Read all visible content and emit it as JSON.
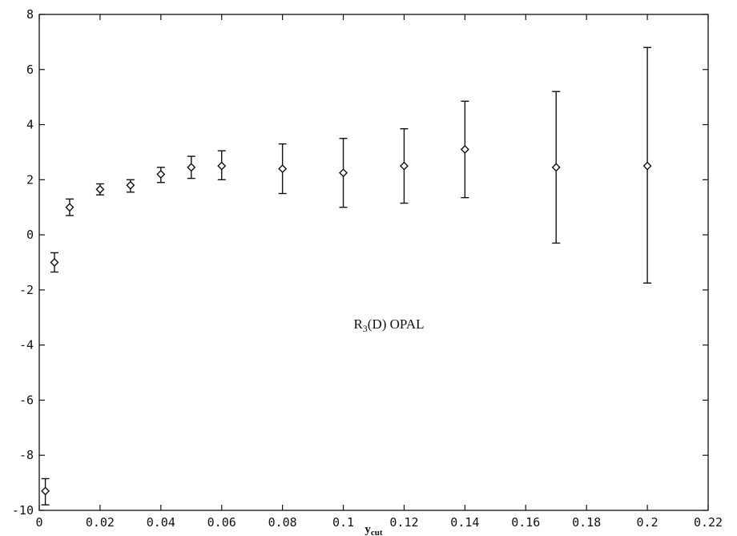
{
  "chart_data": {
    "type": "scatter",
    "title": "",
    "xlabel": "y",
    "xlabel_sub": "cut",
    "ylabel": "",
    "xlim": [
      0,
      0.22
    ],
    "ylim": [
      -10,
      8
    ],
    "grid": false,
    "x_ticks": [
      0,
      0.02,
      0.04,
      0.06,
      0.08,
      0.1,
      0.12,
      0.14,
      0.16,
      0.18,
      0.2,
      0.22
    ],
    "x_tick_labels": [
      "0",
      "0.02",
      "0.04",
      "0.06",
      "0.08",
      "0.1",
      "0.12",
      "0.14",
      "0.16",
      "0.18",
      "0.2",
      "0.22"
    ],
    "y_ticks": [
      -10,
      -8,
      -6,
      -4,
      -2,
      0,
      2,
      4,
      6,
      8
    ],
    "y_tick_labels": [
      "-10",
      "-8",
      "-6",
      "-4",
      "-2",
      "0",
      "2",
      "4",
      "6",
      "8"
    ],
    "annotation": {
      "prefix": "R",
      "sub": "3",
      "suffix": "(D) OPAL",
      "x": 0.115,
      "y": -3.4
    },
    "marker": "diamond",
    "points": [
      {
        "x": 0.002,
        "y": -9.3,
        "lo": -9.8,
        "hi": -8.85
      },
      {
        "x": 0.005,
        "y": -1.0,
        "lo": -1.35,
        "hi": -0.65
      },
      {
        "x": 0.01,
        "y": 1.0,
        "lo": 0.7,
        "hi": 1.3
      },
      {
        "x": 0.02,
        "y": 1.65,
        "lo": 1.45,
        "hi": 1.85
      },
      {
        "x": 0.03,
        "y": 1.8,
        "lo": 1.55,
        "hi": 2.0
      },
      {
        "x": 0.04,
        "y": 2.2,
        "lo": 1.9,
        "hi": 2.45
      },
      {
        "x": 0.05,
        "y": 2.45,
        "lo": 2.05,
        "hi": 2.85
      },
      {
        "x": 0.06,
        "y": 2.5,
        "lo": 2.0,
        "hi": 3.05
      },
      {
        "x": 0.08,
        "y": 2.4,
        "lo": 1.5,
        "hi": 3.3
      },
      {
        "x": 0.1,
        "y": 2.25,
        "lo": 1.0,
        "hi": 3.5
      },
      {
        "x": 0.12,
        "y": 2.5,
        "lo": 1.15,
        "hi": 3.85
      },
      {
        "x": 0.14,
        "y": 3.1,
        "lo": 1.35,
        "hi": 4.85
      },
      {
        "x": 0.17,
        "y": 2.45,
        "lo": -0.3,
        "hi": 5.2
      },
      {
        "x": 0.2,
        "y": 2.5,
        "lo": -1.75,
        "hi": 6.8
      }
    ]
  }
}
